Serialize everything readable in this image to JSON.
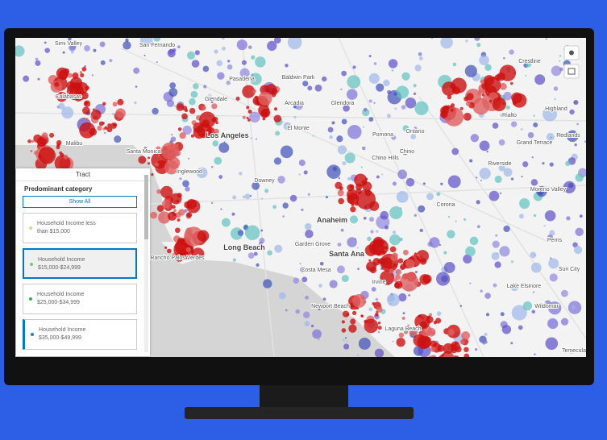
{
  "map": {
    "labels": [
      "Simi Valley",
      "San Fernando",
      "Calabasas",
      "Malibu",
      "Glendale",
      "Pasadena",
      "Arcadia",
      "Glendora",
      "Baldwin Park",
      "El Monte",
      "Santa Monica",
      "Los Angeles",
      "Inglewood",
      "Downey",
      "Pomona",
      "Ontario",
      "Chino",
      "Chino Hills",
      "Corona",
      "Riverside",
      "Grand Terrace",
      "Highland",
      "Rialto",
      "Redlands",
      "Crestline",
      "Moreno Valley",
      "Perris",
      "Sun City",
      "Lake Elsinore",
      "Wildomar",
      "Temecula",
      "Anaheim",
      "Santa Ana",
      "Long Beach",
      "Garden Grove",
      "Rancho Palos Verdes",
      "Costa Mesa",
      "Newport Beach",
      "Irvine",
      "Laguna Beach"
    ]
  },
  "panel": {
    "title": "Tract",
    "subtitle": "Predominant category",
    "show_all": "Show All",
    "items": [
      {
        "label": "Household Income less than $15,000",
        "color": "#e8d08a"
      },
      {
        "label": "Household Income $15,000-$24,999",
        "color": "#6fcf6f"
      },
      {
        "label": "Household Income $25,000-$34,999",
        "color": "#3bb04a"
      },
      {
        "label": "Household Income $35,000-$49,999",
        "color": "#1f7fc8"
      }
    ]
  }
}
